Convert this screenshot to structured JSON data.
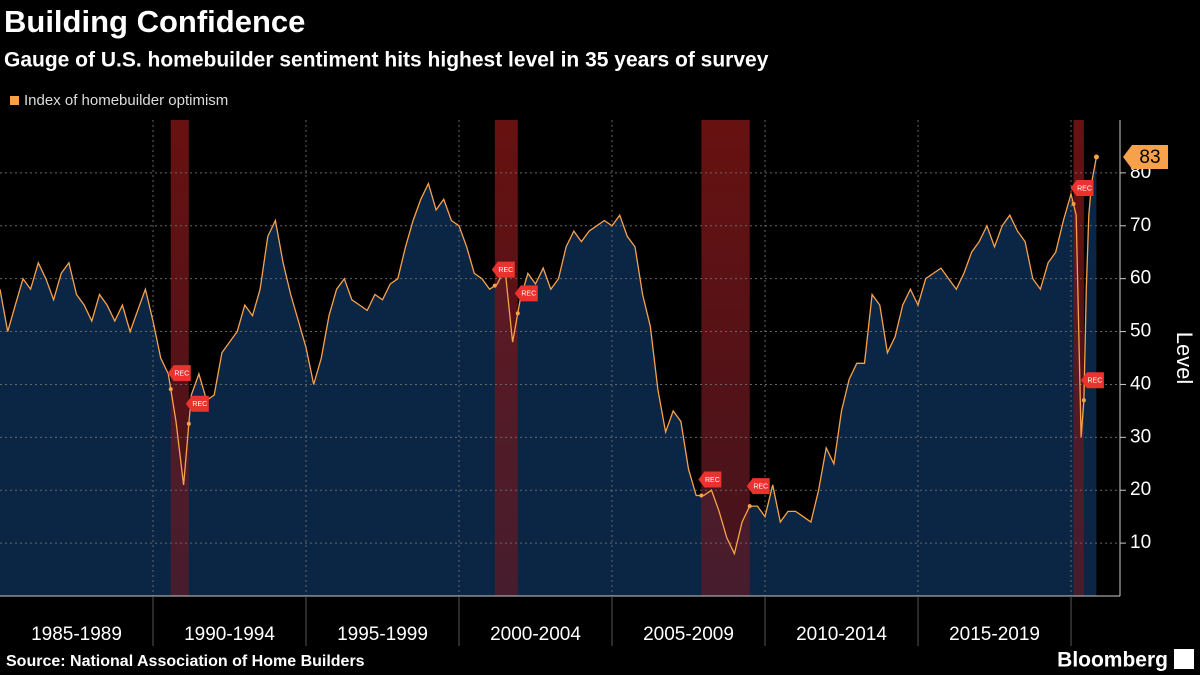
{
  "chart_data": {
    "type": "area",
    "title": "Building Confidence",
    "subtitle": "Gauge of U.S. homebuilder sentiment hits highest level in 35 years of survey",
    "y_label": "Level",
    "source": "Source: National Association of Home Builders",
    "brand": "Bloomberg",
    "categories": [
      "1985-1989",
      "1990-1994",
      "1995-1999",
      "2000-2004",
      "2005-2009",
      "2010-2014",
      "2015-2019"
    ],
    "xlim": [
      1985,
      2021.6
    ],
    "xticks": [
      1990,
      1995,
      2000,
      2005,
      2010,
      2015,
      2020
    ],
    "ylim": [
      0,
      90
    ],
    "yticks": [
      10,
      20,
      30,
      40,
      50,
      60,
      70,
      80
    ],
    "grid": true,
    "x": [
      1985.0,
      1985.25,
      1985.5,
      1985.75,
      1986.0,
      1986.25,
      1986.5,
      1986.75,
      1987.0,
      1987.25,
      1987.5,
      1987.75,
      1988.0,
      1988.25,
      1988.5,
      1988.75,
      1989.0,
      1989.25,
      1989.5,
      1989.75,
      1990.0,
      1990.25,
      1990.5,
      1990.75,
      1991.0,
      1991.25,
      1991.5,
      1991.75,
      1992.0,
      1992.25,
      1992.5,
      1992.75,
      1993.0,
      1993.25,
      1993.5,
      1993.75,
      1994.0,
      1994.25,
      1994.5,
      1994.75,
      1995.0,
      1995.25,
      1995.5,
      1995.75,
      1996.0,
      1996.25,
      1996.5,
      1996.75,
      1997.0,
      1997.25,
      1997.5,
      1997.75,
      1998.0,
      1998.25,
      1998.5,
      1998.75,
      1999.0,
      1999.25,
      1999.5,
      1999.75,
      2000.0,
      2000.25,
      2000.5,
      2000.75,
      2001.0,
      2001.25,
      2001.5,
      2001.75,
      2002.0,
      2002.25,
      2002.5,
      2002.75,
      2003.0,
      2003.25,
      2003.5,
      2003.75,
      2004.0,
      2004.25,
      2004.5,
      2004.75,
      2005.0,
      2005.25,
      2005.5,
      2005.75,
      2006.0,
      2006.25,
      2006.5,
      2006.75,
      2007.0,
      2007.25,
      2007.5,
      2007.75,
      2008.0,
      2008.25,
      2008.5,
      2008.75,
      2009.0,
      2009.25,
      2009.5,
      2009.75,
      2010.0,
      2010.25,
      2010.5,
      2010.75,
      2011.0,
      2011.25,
      2011.5,
      2011.75,
      2012.0,
      2012.25,
      2012.5,
      2012.75,
      2013.0,
      2013.25,
      2013.5,
      2013.75,
      2014.0,
      2014.25,
      2014.5,
      2014.75,
      2015.0,
      2015.25,
      2015.5,
      2015.75,
      2016.0,
      2016.25,
      2016.5,
      2016.75,
      2017.0,
      2017.25,
      2017.5,
      2017.75,
      2018.0,
      2018.25,
      2018.5,
      2018.75,
      2019.0,
      2019.25,
      2019.5,
      2019.75,
      2020.0,
      2020.17,
      2020.33,
      2020.42,
      2020.5,
      2020.58,
      2020.67,
      2020.83
    ],
    "series": [
      {
        "name": "Index of homebuilder optimism",
        "color": "#f7a24b",
        "fill": "#0b2544",
        "values": [
          58,
          50,
          55,
          60,
          58,
          63,
          60,
          56,
          61,
          63,
          57,
          55,
          52,
          57,
          55,
          52,
          55,
          50,
          54,
          58,
          52,
          45,
          42,
          33,
          21,
          38,
          42,
          37,
          38,
          46,
          48,
          50,
          55,
          53,
          58,
          68,
          71,
          63,
          57,
          52,
          47,
          40,
          45,
          53,
          58,
          60,
          56,
          55,
          54,
          57,
          56,
          59,
          60,
          66,
          71,
          75,
          78,
          73,
          75,
          71,
          70,
          66,
          61,
          60,
          58,
          59,
          62,
          48,
          56,
          61,
          59,
          62,
          58,
          60,
          66,
          69,
          67,
          69,
          70,
          71,
          70,
          72,
          68,
          66,
          57,
          51,
          39,
          31,
          35,
          33,
          24,
          19,
          19,
          20,
          16,
          11,
          8,
          14,
          17,
          17,
          15,
          21,
          14,
          16,
          16,
          15,
          14,
          20,
          28,
          25,
          35,
          41,
          44,
          44,
          57,
          55,
          46,
          49,
          55,
          58,
          55,
          60,
          61,
          62,
          60,
          58,
          61,
          65,
          67,
          70,
          66,
          70,
          72,
          69,
          67,
          60,
          58,
          63,
          65,
          71,
          76,
          72,
          30,
          37,
          58,
          72,
          78,
          83
        ]
      }
    ],
    "recessions": [
      {
        "start": 1990.58,
        "end": 1991.17,
        "label": "REC"
      },
      {
        "start": 2001.17,
        "end": 2001.92,
        "label": "REC"
      },
      {
        "start": 2007.92,
        "end": 2009.5,
        "label": "REC"
      },
      {
        "start": 2020.08,
        "end": 2020.42,
        "label": "REC"
      }
    ]
  }
}
